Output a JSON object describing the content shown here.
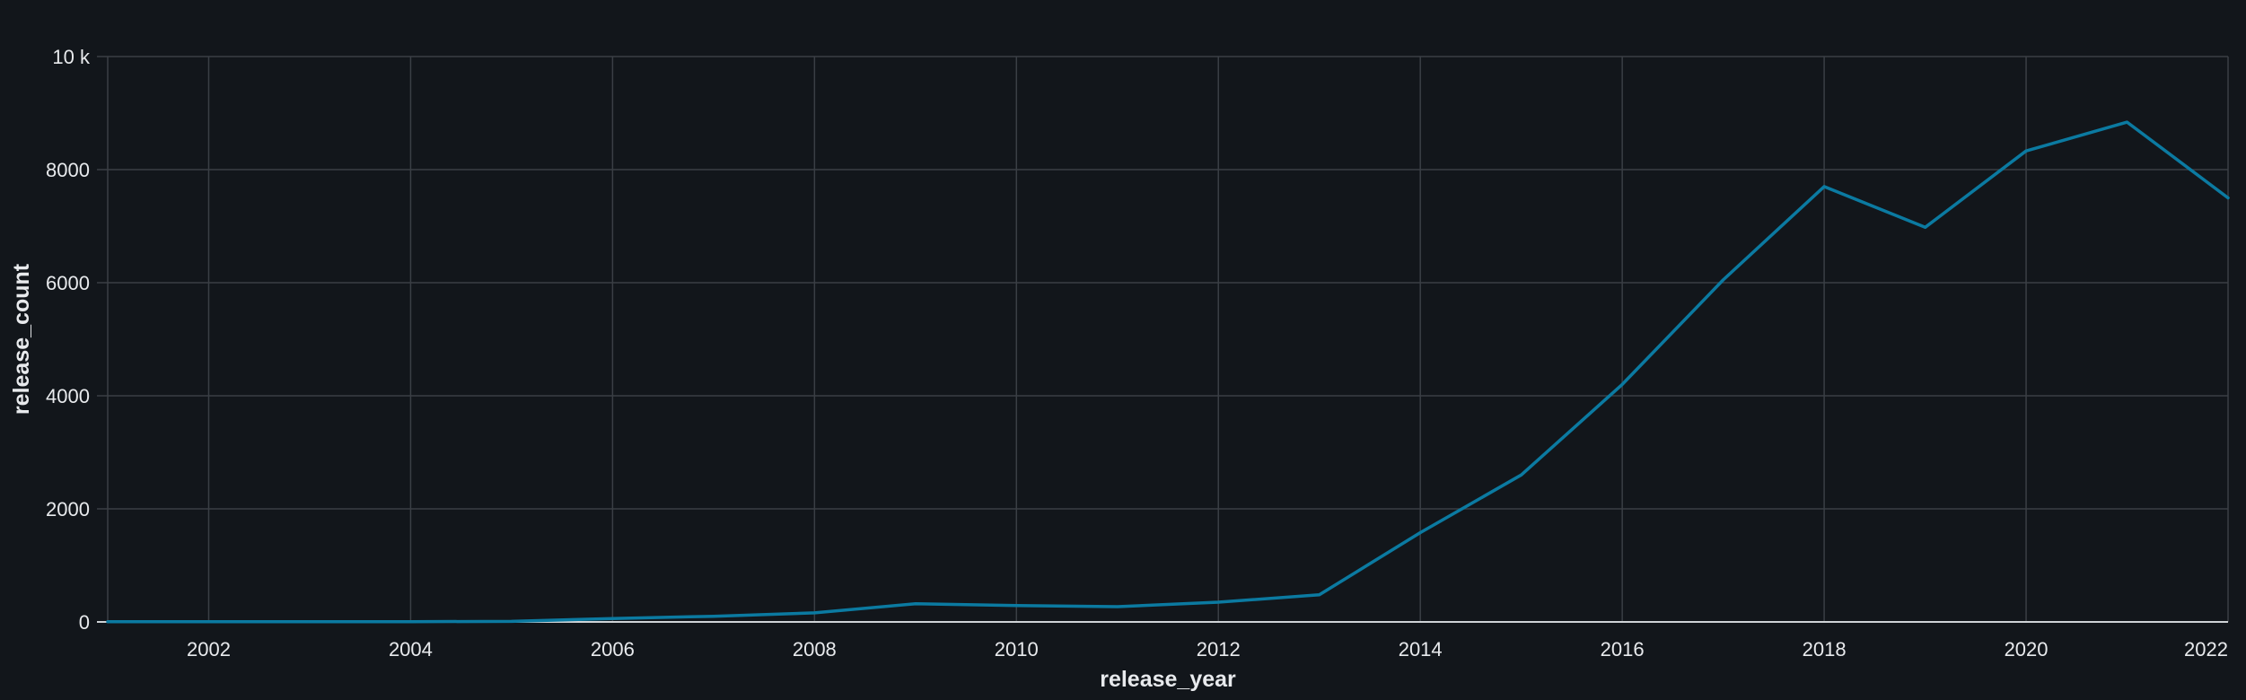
{
  "chart_data": {
    "type": "line",
    "title": "",
    "xlabel": "release_year",
    "ylabel": "release_count",
    "xlim": [
      2001,
      2022
    ],
    "ylim": [
      0,
      10000
    ],
    "x_ticks": [
      {
        "value": 2002,
        "label": "2002"
      },
      {
        "value": 2004,
        "label": "2004"
      },
      {
        "value": 2006,
        "label": "2006"
      },
      {
        "value": 2008,
        "label": "2008"
      },
      {
        "value": 2010,
        "label": "2010"
      },
      {
        "value": 2012,
        "label": "2012"
      },
      {
        "value": 2014,
        "label": "2014"
      },
      {
        "value": 2016,
        "label": "2016"
      },
      {
        "value": 2018,
        "label": "2018"
      },
      {
        "value": 2020,
        "label": "2020"
      },
      {
        "value": 2022,
        "label": "2022"
      }
    ],
    "y_ticks": [
      {
        "value": 0,
        "label": "0"
      },
      {
        "value": 2000,
        "label": "2000"
      },
      {
        "value": 4000,
        "label": "4000"
      },
      {
        "value": 6000,
        "label": "6000"
      },
      {
        "value": 8000,
        "label": "8000"
      },
      {
        "value": 10000,
        "label": "10 k"
      }
    ],
    "grid": true,
    "legend": "none",
    "line_color": "#0b7aa1",
    "x": [
      2001,
      2002,
      2003,
      2004,
      2005,
      2006,
      2007,
      2008,
      2009,
      2010,
      2011,
      2012,
      2013,
      2014,
      2015,
      2016,
      2017,
      2018,
      2019,
      2020,
      2021,
      2022
    ],
    "series": [
      {
        "name": "",
        "values": [
          5,
          5,
          5,
          5,
          10,
          60,
          100,
          160,
          320,
          290,
          270,
          350,
          480,
          1580,
          2600,
          4200,
          6050,
          7700,
          6980,
          8330,
          8840,
          7500
        ]
      }
    ]
  }
}
